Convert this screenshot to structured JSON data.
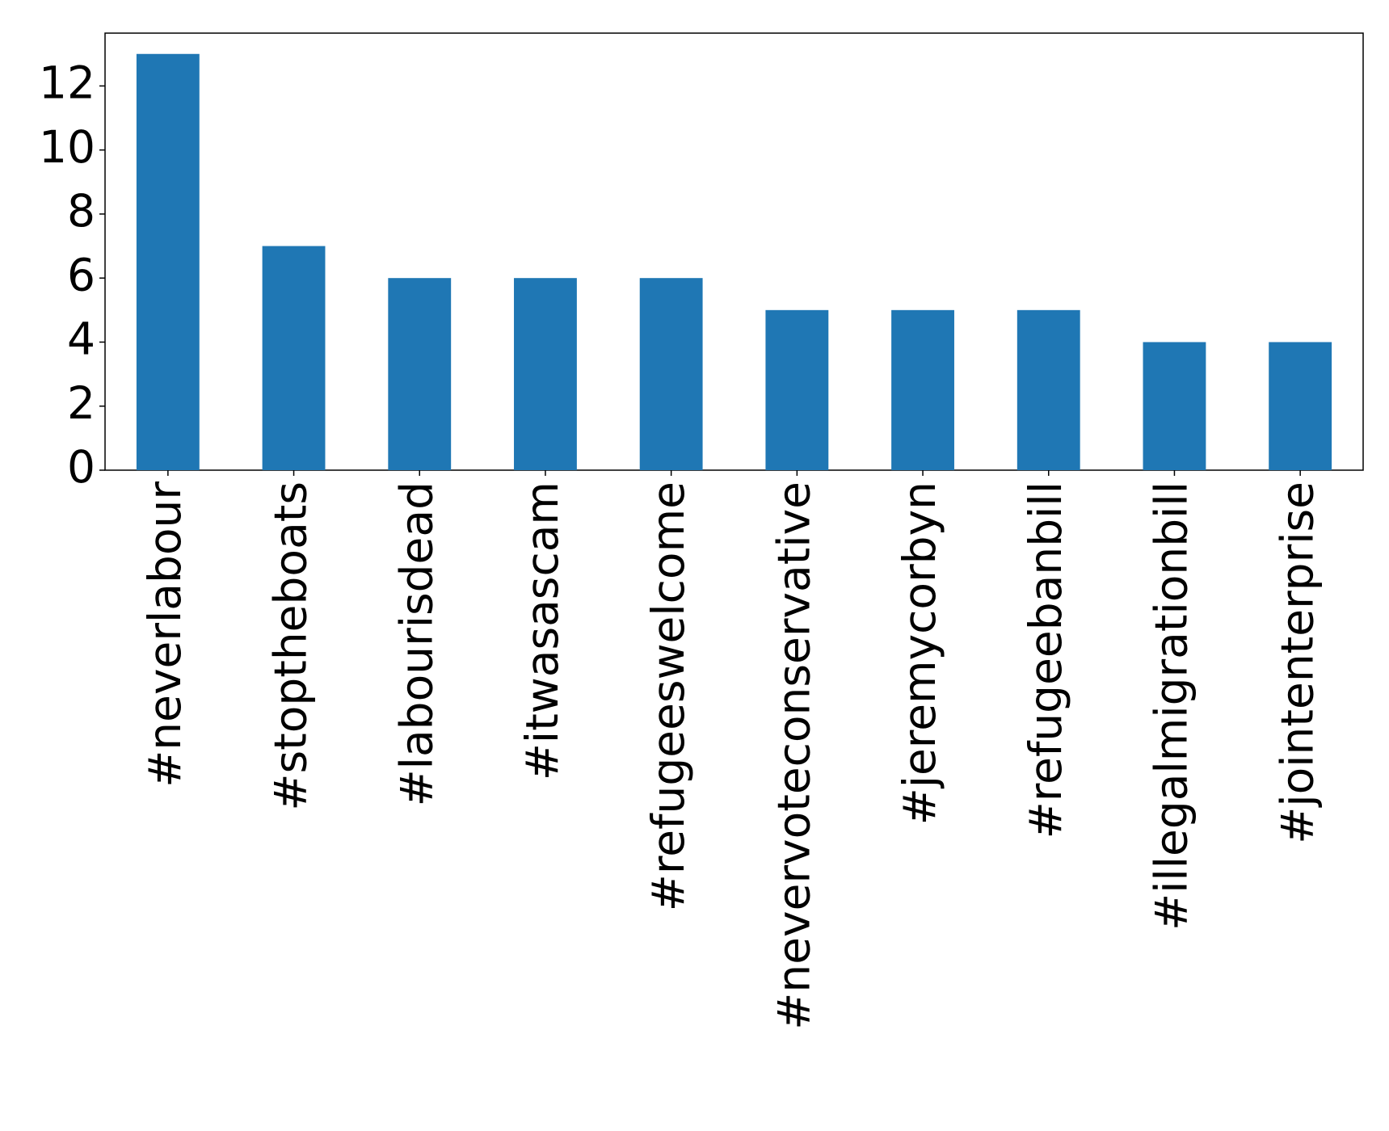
{
  "chart_data": {
    "type": "bar",
    "categories": [
      "#neverlabour",
      "#stoptheboats",
      "#labourisdead",
      "#itwasascam",
      "#refugeeswelcome",
      "#nevervoteconservative",
      "#jeremycorbyn",
      "#refugeebanbill",
      "#illegalmigrationbill",
      "#jointenterprise"
    ],
    "values": [
      13,
      7,
      6,
      6,
      6,
      5,
      5,
      5,
      4,
      4
    ],
    "color": "#1f77b4",
    "ylim": [
      0,
      13.65
    ],
    "yticks": [
      0,
      2,
      4,
      6,
      8,
      10,
      12
    ],
    "grid": false
  }
}
